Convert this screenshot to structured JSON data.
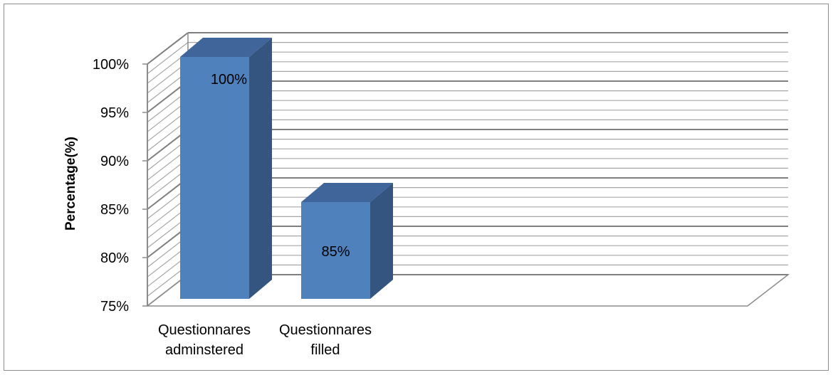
{
  "chart_data": {
    "type": "bar",
    "style": "3d-column",
    "categories": [
      "Questionnares adminstered",
      "Questionnares filled"
    ],
    "category_lines": [
      [
        "Questionnares",
        "adminstered"
      ],
      [
        "Questionnares",
        "filled"
      ]
    ],
    "values": [
      100,
      85
    ],
    "data_labels": [
      "100%",
      "85%"
    ],
    "ylabel": "Percentage(%)",
    "ylim": [
      75,
      100
    ],
    "yticks": [
      "75%",
      "80%",
      "85%",
      "90%",
      "95%",
      "100%"
    ],
    "grid": true,
    "legend": "none",
    "colors": {
      "bar_front": "#4f81bd",
      "bar_top": "#3f659a",
      "bar_side": "#34557f",
      "grid": "#8c8c8c"
    }
  }
}
